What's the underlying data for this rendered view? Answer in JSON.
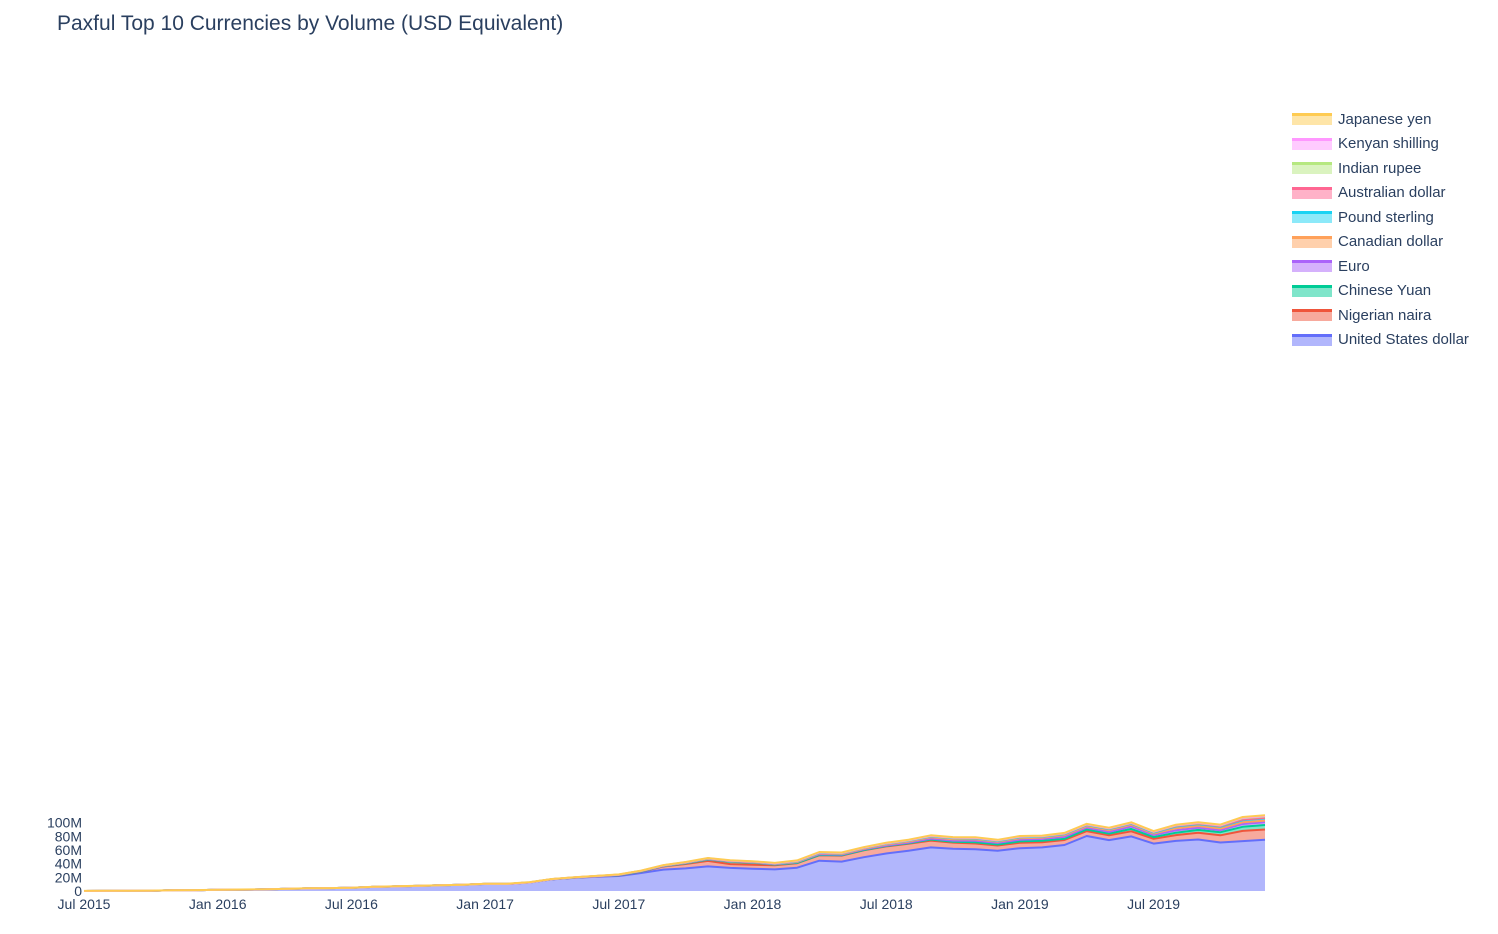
{
  "title": "Paxful Top 10 Currencies by Volume (USD Equivalent)",
  "chart_data": {
    "type": "area",
    "stacked": true,
    "title": "Paxful Top 10 Currencies by Volume (USD Equivalent)",
    "xlabel": "",
    "ylabel": "",
    "x_start": "2015-07",
    "x_end": "2019-12",
    "x": [
      "2015-07",
      "2015-08",
      "2015-09",
      "2015-10",
      "2015-11",
      "2015-12",
      "2016-01",
      "2016-02",
      "2016-03",
      "2016-04",
      "2016-05",
      "2016-06",
      "2016-07",
      "2016-08",
      "2016-09",
      "2016-10",
      "2016-11",
      "2016-12",
      "2017-01",
      "2017-02",
      "2017-03",
      "2017-04",
      "2017-05",
      "2017-06",
      "2017-07",
      "2017-08",
      "2017-09",
      "2017-10",
      "2017-11",
      "2017-12",
      "2018-01",
      "2018-02",
      "2018-03",
      "2018-04",
      "2018-05",
      "2018-06",
      "2018-07",
      "2018-08",
      "2018-09",
      "2018-10",
      "2018-11",
      "2018-12",
      "2019-01",
      "2019-02",
      "2019-03",
      "2019-04",
      "2019-05",
      "2019-06",
      "2019-07",
      "2019-08",
      "2019-09",
      "2019-10",
      "2019-11",
      "2019-12"
    ],
    "x_ticks": [
      "Jul 2015",
      "Jan 2016",
      "Jul 2016",
      "Jan 2017",
      "Jul 2017",
      "Jan 2018",
      "Jul 2018",
      "Jan 2019",
      "Jul 2019"
    ],
    "x_tick_values": [
      "2015-07",
      "2016-01",
      "2016-07",
      "2017-01",
      "2017-07",
      "2018-01",
      "2018-07",
      "2019-01",
      "2019-07"
    ],
    "y_ticks": [
      "0",
      "20M",
      "40M",
      "60M",
      "80M",
      "100M"
    ],
    "y_tick_values": [
      0,
      20000000,
      40000000,
      60000000,
      80000000,
      100000000
    ],
    "ylim": [
      0,
      115000000
    ],
    "grid": false,
    "legend_position": "right",
    "series": [
      {
        "name": "United States dollar",
        "color": "#636efa",
        "values": [
          0.05,
          0.2,
          0.3,
          0.5,
          1.0,
          1.2,
          1.8,
          2.1,
          2.3,
          3.0,
          3.8,
          4.2,
          4.8,
          6.0,
          6.8,
          7.5,
          8.3,
          9.0,
          10.3,
          10.2,
          12.5,
          17.0,
          19.2,
          20.8,
          22.0,
          26.3,
          31.3,
          33.0,
          36.0,
          33.8,
          32.6,
          31.6,
          34.1,
          44.3,
          43.0,
          49.5,
          54.8,
          59.0,
          63.8,
          61.8,
          61.2,
          58.9,
          62.6,
          63.8,
          67.3,
          80.5,
          74.5,
          79.9,
          69.3,
          73.3,
          75.3,
          71.0,
          73.0,
          75.0
        ]
      },
      {
        "name": "Nigerian naira",
        "color": "#ef553b",
        "values": [
          0,
          0,
          0,
          0,
          0,
          0,
          0,
          0,
          0,
          0,
          0,
          0,
          0,
          0,
          0,
          0,
          0,
          0.05,
          0.05,
          0.1,
          0.1,
          0.2,
          0.3,
          0.5,
          1.0,
          2.0,
          4.5,
          6.5,
          8.0,
          5.5,
          5.8,
          6.0,
          6.5,
          7.9,
          8.8,
          10.0,
          10.5,
          10.0,
          10.0,
          9.0,
          8.3,
          7.7,
          8.0,
          7.5,
          7.3,
          7.2,
          7.0,
          7.5,
          7.0,
          8.5,
          9.8,
          10.5,
          15.0,
          15.0
        ]
      },
      {
        "name": "Chinese Yuan",
        "color": "#00cc96",
        "values": [
          0,
          0,
          0,
          0,
          0,
          0,
          0,
          0,
          0,
          0,
          0,
          0,
          0,
          0,
          0,
          0,
          0,
          0.05,
          0.05,
          0.05,
          0.05,
          0.05,
          0.1,
          0.2,
          0.3,
          0.3,
          0.5,
          0.9,
          2.0,
          3.5,
          3.0,
          1.0,
          0.5,
          0.5,
          0.5,
          0.5,
          0.5,
          0.8,
          1.5,
          1.2,
          1.8,
          1.5,
          2.0,
          2.3,
          1.8,
          2.3,
          2.5,
          3.5,
          2.5,
          3.5,
          4.3,
          4.5,
          6.0,
          6.5
        ]
      },
      {
        "name": "Euro",
        "color": "#ab63fa",
        "values": [
          0,
          0,
          0,
          0,
          0,
          0,
          0,
          0,
          0,
          0,
          0,
          0,
          0,
          0,
          0,
          0,
          0,
          0,
          0,
          0,
          0,
          0.05,
          0.1,
          0.2,
          0.2,
          0.3,
          0.3,
          0.5,
          0.5,
          0.5,
          0.5,
          0.5,
          1.0,
          1.2,
          1.0,
          1.0,
          0.8,
          1.0,
          1.4,
          1.8,
          2.2,
          2.2,
          2.5,
          2.6,
          2.7,
          2.7,
          2.5,
          3.5,
          3.2,
          3.5,
          3.2,
          3.0,
          4.0,
          4.0
        ]
      },
      {
        "name": "Canadian dollar",
        "color": "#ffa15a",
        "values": [
          0,
          0,
          0,
          0,
          0,
          0,
          0,
          0,
          0,
          0,
          0,
          0,
          0,
          0,
          0,
          0,
          0,
          0,
          0,
          0,
          0,
          0.05,
          0.05,
          0.1,
          0.2,
          0.3,
          0.4,
          0.3,
          0.5,
          0.4,
          0.4,
          0.5,
          0.5,
          1.1,
          0.8,
          1.0,
          1.5,
          1.5,
          1.8,
          2.0,
          2.0,
          1.8,
          2.2,
          2.0,
          2.5,
          2.0,
          2.5,
          2.5,
          2.0,
          3.0,
          2.5,
          2.5,
          2.5,
          2.5
        ]
      },
      {
        "name": "Pound sterling",
        "color": "#19d3f3",
        "values": [
          0,
          0,
          0,
          0,
          0,
          0,
          0,
          0,
          0,
          0,
          0,
          0,
          0,
          0,
          0,
          0,
          0,
          0,
          0,
          0,
          0,
          0,
          0.05,
          0.1,
          0.2,
          0.3,
          0.3,
          0.5,
          0.5,
          0.4,
          0.4,
          0.5,
          0.9,
          0.8,
          0.9,
          1.0,
          1.0,
          1.1,
          1.2,
          1.3,
          1.3,
          1.1,
          1.3,
          1.1,
          1.5,
          1.5,
          1.5,
          1.5,
          1.5,
          2.5,
          2.5,
          2.5,
          3.0,
          3.0
        ]
      },
      {
        "name": "Australian dollar",
        "color": "#ff6692",
        "values": [
          0,
          0,
          0,
          0,
          0,
          0,
          0,
          0,
          0,
          0,
          0,
          0,
          0,
          0,
          0,
          0,
          0,
          0,
          0,
          0,
          0,
          0,
          0.05,
          0.05,
          0.1,
          0.1,
          0.2,
          0.3,
          0.3,
          0.3,
          0.3,
          0.4,
          0.5,
          0.5,
          0.4,
          0.4,
          0.5,
          0.6,
          0.7,
          0.8,
          0.8,
          0.7,
          0.8,
          0.8,
          0.8,
          0.8,
          0.8,
          0.8,
          0.8,
          1.0,
          1.0,
          1.0,
          1.0,
          1.0
        ]
      },
      {
        "name": "Indian rupee",
        "color": "#b6e880",
        "values": [
          0,
          0,
          0,
          0,
          0,
          0,
          0,
          0,
          0,
          0,
          0,
          0,
          0,
          0,
          0,
          0,
          0,
          0,
          0,
          0,
          0,
          0,
          0,
          0,
          0,
          0,
          0,
          0,
          0.05,
          0.05,
          0.1,
          0.1,
          0.1,
          0.1,
          0.1,
          0.1,
          0.1,
          0.1,
          0.1,
          0.1,
          0.1,
          0.1,
          0.1,
          0.1,
          0.2,
          0.3,
          0.3,
          0.3,
          0.3,
          0.5,
          0.8,
          0.8,
          2.0,
          2.0
        ]
      },
      {
        "name": "Kenyan shilling",
        "color": "#ff97ff",
        "values": [
          0,
          0,
          0,
          0,
          0,
          0,
          0,
          0,
          0,
          0,
          0,
          0,
          0,
          0,
          0,
          0,
          0,
          0,
          0,
          0,
          0,
          0,
          0,
          0,
          0,
          0,
          0.05,
          0.05,
          0.1,
          0.1,
          0.1,
          0.1,
          0.1,
          0.1,
          0.2,
          0.2,
          0.3,
          0.3,
          0.3,
          0.3,
          0.3,
          0.3,
          0.3,
          0.3,
          0.3,
          0.3,
          0.3,
          0.3,
          0.3,
          0.5,
          0.5,
          0.5,
          0.8,
          0.8
        ]
      },
      {
        "name": "Japanese yen",
        "color": "#fecb52",
        "values": [
          0.05,
          0.05,
          0.05,
          0.1,
          0.1,
          0.1,
          0.1,
          0.1,
          0.1,
          0.1,
          0.1,
          0.1,
          0.1,
          0.1,
          0.1,
          0.1,
          0.1,
          0.1,
          0.3,
          0.3,
          0.3,
          0.2,
          0.2,
          0.2,
          0.3,
          0.3,
          0.3,
          0.4,
          0.4,
          0.4,
          0.4,
          0.4,
          0.5,
          0.6,
          0.6,
          0.6,
          0.6,
          0.7,
          0.7,
          0.6,
          0.6,
          0.6,
          0.6,
          0.6,
          0.6,
          0.7,
          0.7,
          0.7,
          0.7,
          0.7,
          0.8,
          0.8,
          0.9,
          0.9
        ]
      }
    ],
    "value_unit_multiplier": 1000000
  }
}
